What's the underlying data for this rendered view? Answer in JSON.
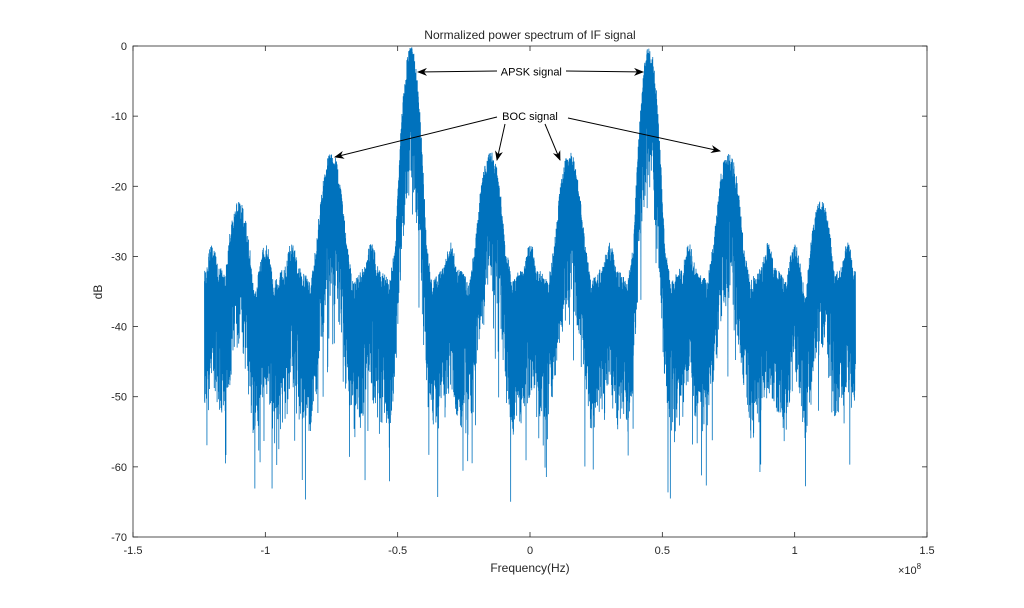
{
  "chart_data": {
    "type": "line",
    "title": "Normalized power spectrum of IF signal",
    "xlabel": "Frequency(Hz)",
    "ylabel": "dB",
    "x_exponent_label": "×10",
    "x_exponent_power": "8",
    "xlim": [
      -1.5,
      1.5
    ],
    "ylim": [
      -70,
      0
    ],
    "x_ticks": [
      -1.5,
      -1,
      -0.5,
      0,
      0.5,
      1,
      1.5
    ],
    "x_tick_labels": [
      "-1.5",
      "-1",
      "-0.5",
      "0",
      "0.5",
      "1",
      "1.5"
    ],
    "y_ticks": [
      0,
      -10,
      -20,
      -30,
      -40,
      -50,
      -60,
      -70
    ],
    "y_tick_labels": [
      "0",
      "-10",
      "-20",
      "-30",
      "-40",
      "-50",
      "-60",
      "-70"
    ],
    "grid": false,
    "series": [
      {
        "name": "spectrum",
        "color": "#0072BD",
        "x_range": [
          -1.23,
          1.23
        ],
        "noise_floor_db": -40,
        "min_db": -66,
        "peaks": [
          {
            "center": -0.45,
            "level": 0,
            "label": "APSK"
          },
          {
            "center": 0.45,
            "level": 0,
            "label": "APSK"
          },
          {
            "center": -0.75,
            "level": -15,
            "label": "BOC"
          },
          {
            "center": -0.15,
            "level": -15,
            "label": "BOC"
          },
          {
            "center": 0.15,
            "level": -15,
            "label": "BOC"
          },
          {
            "center": 0.75,
            "level": -15,
            "label": "BOC"
          },
          {
            "center": -1.1,
            "level": -22
          },
          {
            "center": 1.1,
            "level": -22
          }
        ]
      }
    ],
    "annotations": [
      {
        "text": "APSK signal",
        "x": 0.005,
        "y": -3.6
      },
      {
        "text": "BOC signal",
        "x": 0.0,
        "y": -10
      }
    ]
  }
}
